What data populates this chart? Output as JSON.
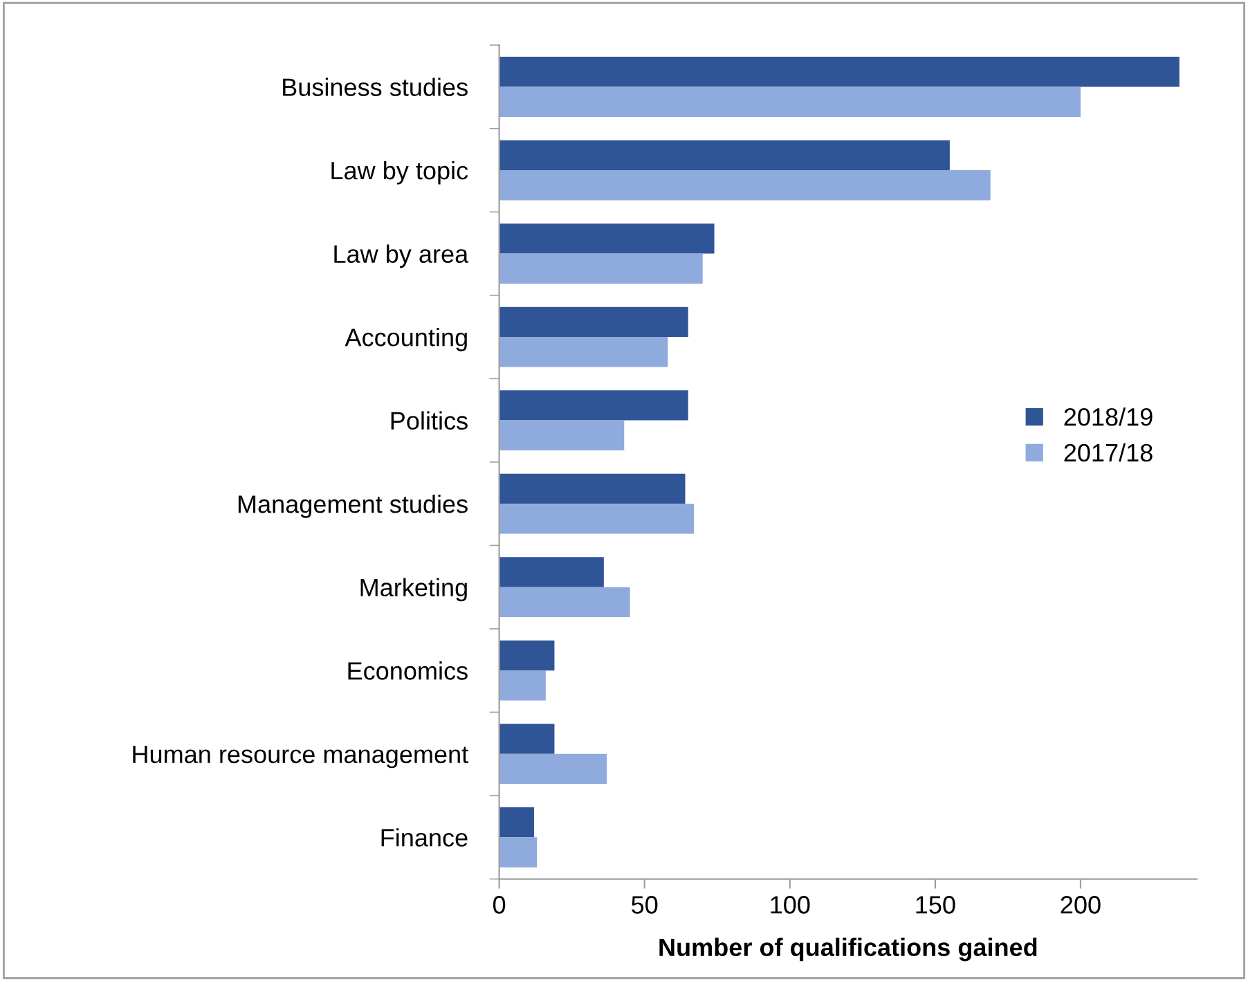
{
  "chart_data": {
    "type": "bar",
    "orientation": "horizontal",
    "xlabel": "Number of qualifications gained",
    "categories": [
      "Business studies",
      "Law by topic",
      "Law by area",
      "Accounting",
      "Politics",
      "Management studies",
      "Marketing",
      "Economics",
      "Human resource management",
      "Finance"
    ],
    "series": [
      {
        "name": "2018/19",
        "color": "#2f5597",
        "values": [
          234,
          155,
          74,
          65,
          65,
          64,
          36,
          19,
          19,
          12
        ]
      },
      {
        "name": "2017/18",
        "color": "#8faadc",
        "values": [
          200,
          169,
          70,
          58,
          43,
          67,
          45,
          16,
          37,
          13
        ]
      }
    ],
    "xlim": [
      0,
      240
    ],
    "xticks": [
      0,
      50,
      100,
      150,
      200
    ],
    "grid": false,
    "legend": "right"
  }
}
